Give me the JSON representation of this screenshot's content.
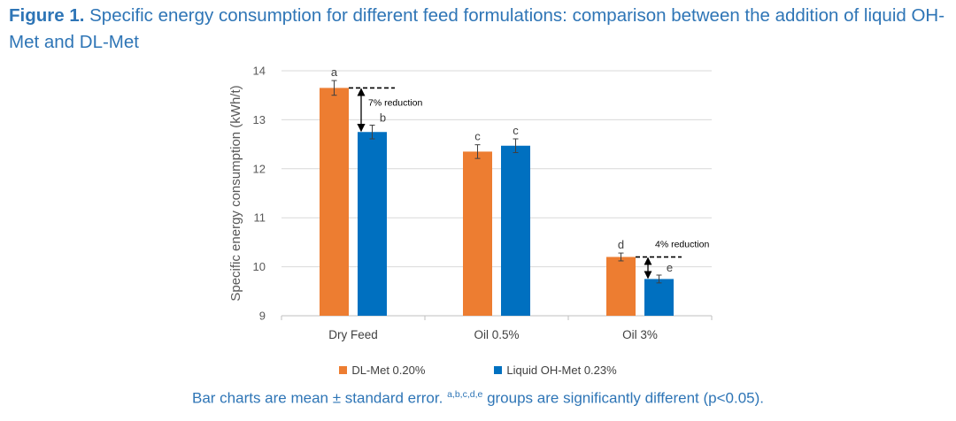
{
  "caption": {
    "label": "Figure 1.",
    "text": " Specific energy consumption for different feed formulations: comparison between the addition of liquid OH-Met and DL-Met"
  },
  "chart_data": {
    "type": "bar",
    "ylabel": "Specific energy consumption (kWh/t)",
    "ylim": [
      9,
      14
    ],
    "yticks": [
      9,
      10,
      11,
      12,
      13,
      14
    ],
    "categories": [
      "Dry Feed",
      "Oil 0.5%",
      "Oil 3%"
    ],
    "series": [
      {
        "name": "DL-Met 0.20%",
        "color": "#ed7d31",
        "values": [
          13.65,
          12.35,
          10.2
        ],
        "errors": [
          0.15,
          0.14,
          0.08
        ],
        "letters": [
          "a",
          "c",
          "d"
        ]
      },
      {
        "name": "Liquid OH-Met 0.23%",
        "color": "#0070c0",
        "values": [
          12.75,
          12.47,
          9.75
        ],
        "errors": [
          0.14,
          0.14,
          0.08
        ],
        "letters": [
          "b",
          "c",
          "e"
        ]
      }
    ],
    "annotations": [
      {
        "category_index": 0,
        "text": "7% reduction"
      },
      {
        "category_index": 2,
        "text": "4% reduction"
      }
    ]
  },
  "legend": {
    "items": [
      {
        "label": "DL-Met 0.20%",
        "color": "#ed7d31"
      },
      {
        "label": "Liquid OH-Met 0.23%",
        "color": "#0070c0"
      }
    ]
  },
  "footnote": {
    "before": "Bar charts are mean ± standard error. ",
    "superscript": "a,b,c,d,e",
    "after": " groups are significantly different (p<0.05)."
  }
}
